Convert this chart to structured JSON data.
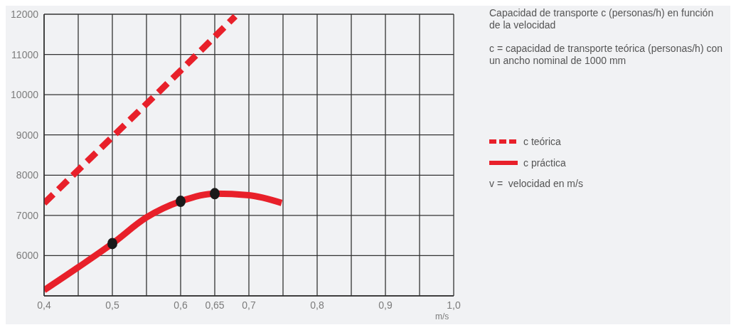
{
  "chart_data": {
    "type": "line",
    "title": "Capacidad de transporte c (personas/h) en función de la velocidad",
    "subtitle": "c = capacidad de transporte teórica (personas/h) con un ancho nominal de 1000 mm",
    "xlabel": "m/s",
    "annotations": [
      "v =  velocidad en m/s"
    ],
    "series": [
      {
        "name": "c teórica",
        "line_style": "dashed",
        "color": "#e8202a",
        "x": [
          0.4,
          0.5,
          0.6,
          0.68
        ],
        "values": [
          7300,
          8950,
          10600,
          11950
        ]
      },
      {
        "name": "c práctica",
        "line_style": "solid",
        "color": "#e8202a",
        "x": [
          0.4,
          0.45,
          0.5,
          0.55,
          0.6,
          0.65,
          0.7,
          0.748
        ],
        "values": [
          5140,
          5710,
          6300,
          6950,
          7350,
          7540,
          7500,
          7310
        ]
      },
      {
        "type": "scatter",
        "marker": "circle",
        "color": "#1a1a1a",
        "x": [
          0.5,
          0.6,
          0.65
        ],
        "values": [
          6300,
          7350,
          7540
        ]
      }
    ],
    "xlim": [
      0.4,
      1.0
    ],
    "xticks": [
      {
        "value": 0.4,
        "label": "0,4"
      },
      {
        "value": 0.45,
        "label": null
      },
      {
        "value": 0.5,
        "label": "0,5"
      },
      {
        "value": 0.55,
        "label": null
      },
      {
        "value": 0.6,
        "label": "0,6"
      },
      {
        "value": 0.65,
        "label": "0,65"
      },
      {
        "value": 0.7,
        "label": "0,7"
      },
      {
        "value": 0.75,
        "label": null
      },
      {
        "value": 0.8,
        "label": "0,8"
      },
      {
        "value": 0.85,
        "label": null
      },
      {
        "value": 0.9,
        "label": "0,9"
      },
      {
        "value": 0.95,
        "label": null
      },
      {
        "value": 1.0,
        "label": "1,0"
      }
    ],
    "ylim": [
      5000,
      12000
    ],
    "yticks": [
      {
        "value": 5000,
        "label": null
      },
      6000,
      7000,
      8000,
      9000,
      10000,
      11000,
      12000
    ],
    "grid": true,
    "legend": "right"
  }
}
